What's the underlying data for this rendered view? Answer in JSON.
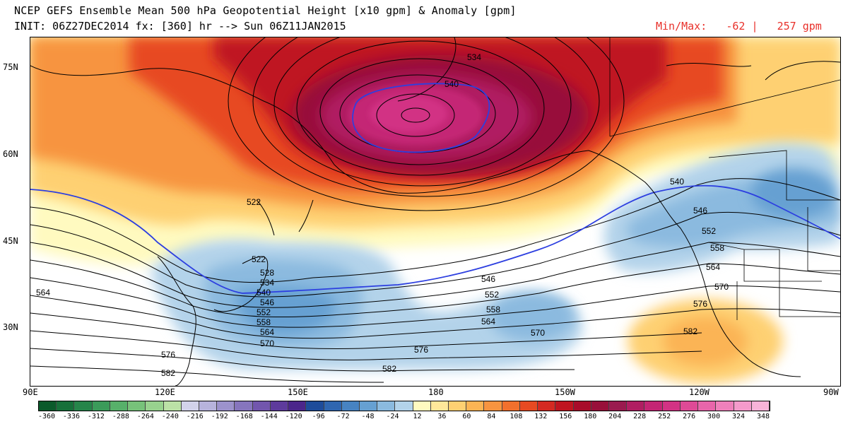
{
  "header": {
    "title": "NCEP GEFS Ensemble Mean 500 hPa Geopotential Height [x10 gpm] & Anomaly [gpm]",
    "init_line": "INIT: 06Z27DEC2014 fx: [360] hr --> Sun 06Z11JAN2015",
    "minmax": "Min/Max:   -62 |   257 gpm"
  },
  "axes": {
    "lat_labels": [
      "75N",
      "60N",
      "45N",
      "30N"
    ],
    "lon_labels": [
      "90E",
      "120E",
      "150E",
      "180",
      "150W",
      "120W",
      "90W"
    ]
  },
  "contour_labels": {
    "w534": "534",
    "w540": "540",
    "w522": "522",
    "w522b": "522",
    "w528": "528",
    "w534b": "534",
    "w540b": "540",
    "w546": "546",
    "w552": "552",
    "w558": "558",
    "w564": "564",
    "w570": "570",
    "w576": "576",
    "w582": "582",
    "w564w": "564",
    "c546": "546",
    "c552": "552",
    "c558": "558",
    "c564": "564",
    "c570": "570",
    "c576": "576",
    "c582": "582",
    "e540": "540",
    "e546": "546",
    "e552": "552",
    "e558": "558",
    "e564": "564",
    "e570": "570",
    "e576": "576",
    "e582": "582"
  },
  "colorbar": {
    "labels": [
      "-360",
      "-336",
      "-312",
      "-288",
      "-264",
      "-240",
      "-216",
      "-192",
      "-168",
      "-144",
      "-120",
      "-96",
      "-72",
      "-48",
      "-24",
      "12",
      "36",
      "60",
      "84",
      "108",
      "132",
      "156",
      "180",
      "204",
      "228",
      "252",
      "276",
      "300",
      "324",
      "348"
    ],
    "colors": [
      "#0b5a2b",
      "#17703a",
      "#26854a",
      "#3b9b5a",
      "#57b06a",
      "#77c27a",
      "#98d28e",
      "#bbe1a6",
      "#d2d2ea",
      "#b7b3dc",
      "#9c92cc",
      "#8675bd",
      "#7256ad",
      "#5e3b9c",
      "#4b268b",
      "#1e4c9a",
      "#2f66b0",
      "#4783c2",
      "#66a0d2",
      "#8bbadf",
      "#b3d3ea",
      "#fffac0",
      "#ffe89a",
      "#fed072",
      "#fbb454",
      "#f79440",
      "#f1702d",
      "#e74a22",
      "#d42a22",
      "#bf1520",
      "#a80c2a",
      "#98103a",
      "#9a1a4f",
      "#b01e62",
      "#c42574",
      "#d23284",
      "#de4a96",
      "#e865aa",
      "#ef80bb",
      "#f59acb",
      "#f8b3d8"
    ]
  }
}
